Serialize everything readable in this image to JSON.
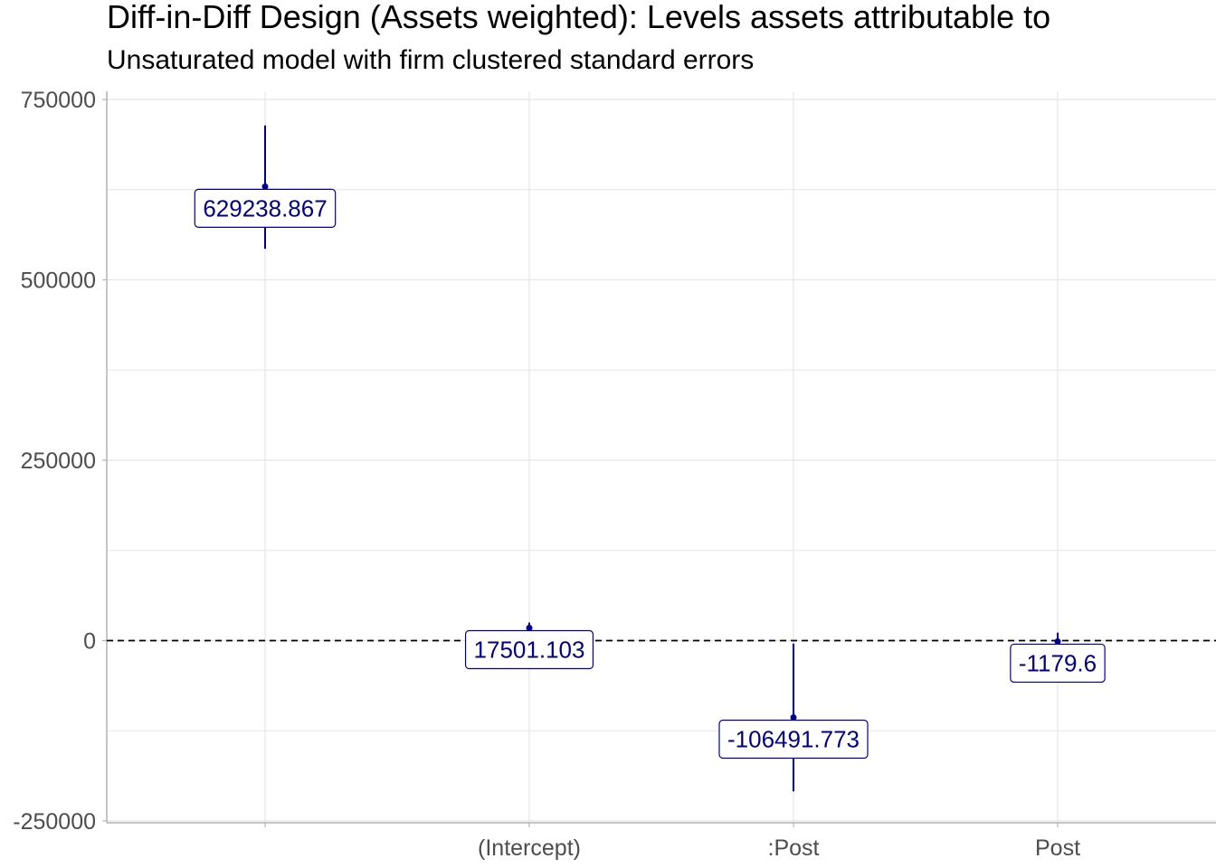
{
  "chart_data": {
    "type": "scatter",
    "title": "Diff-in-Diff Design (Assets weighted): Levels assets attributable to",
    "subtitle": "Unsaturated model with firm clustered standard errors",
    "xlabel": "",
    "ylabel": "",
    "categories": [
      "",
      "(Intercept)",
      ":Post",
      "Post"
    ],
    "points": [
      {
        "category": "",
        "estimate": 629238.867,
        "lower": 543000,
        "upper": 714000,
        "label": "629238.867"
      },
      {
        "category": "(Intercept)",
        "estimate": 17501.103,
        "lower": 10000,
        "upper": 25000,
        "label": "17501.103"
      },
      {
        "category": ":Post",
        "estimate": -106491.773,
        "lower": -209000,
        "upper": -4000,
        "label": "-106491.773"
      },
      {
        "category": "Post",
        "estimate": -1179.6,
        "lower": -12000,
        "upper": 11000,
        "label": "-1179.6"
      }
    ],
    "ylim": [
      -250000,
      750000
    ],
    "yticks": [
      -250000,
      0,
      250000,
      500000,
      750000
    ],
    "ytick_labels": [
      "-250000",
      "0",
      "250000",
      "500000",
      "750000"
    ],
    "reference_line": {
      "y": 0,
      "style": "dashed"
    },
    "grid": true,
    "legend": "none",
    "colors": {
      "points": "#00008B",
      "grid": "#e5e5e5",
      "axis": "#b3b3b3",
      "reference": "#000000"
    }
  }
}
